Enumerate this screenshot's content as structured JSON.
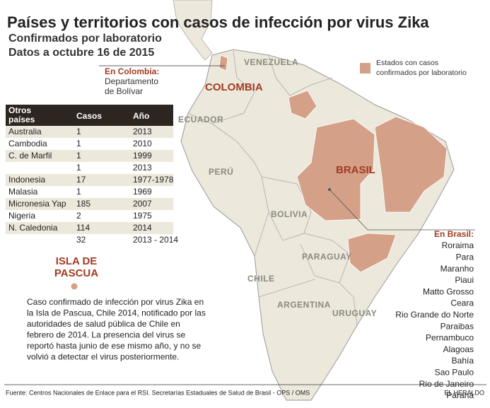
{
  "header": {
    "title": "Países y territorios con casos de infección por virus Zika",
    "subtitle": "Confirmados por laboratorio",
    "date": "Datos a octubre 16 de 2015"
  },
  "legend": {
    "lines": [
      "Estados con casos",
      "confirmados por laboratorio"
    ]
  },
  "colombia_note": {
    "label": "En Colombia:",
    "lines": [
      "Departamento",
      "de Bolívar"
    ]
  },
  "map_labels": {
    "venezuela": "VENEZUELA",
    "colombia": "COLOMBIA",
    "ecuador": "ECUADOR",
    "peru": "PERÚ",
    "bolivia": "BOLIVIA",
    "brasil": "BRASIL",
    "paraguay": "PARAGUAY",
    "chile": "CHILE",
    "argentina": "ARGENTINA",
    "uruguay": "URUGUAY"
  },
  "table": {
    "header": [
      "Otros\npaíses",
      "Casos",
      "Año"
    ],
    "rows": [
      [
        "Australia",
        "1",
        "2013"
      ],
      [
        "Cambodia",
        "1",
        "2010"
      ],
      [
        "C. de Marfil",
        "1",
        "1999"
      ],
      [
        null,
        "1",
        "2013"
      ],
      [
        "Indonesia",
        "17",
        "1977-1978"
      ],
      [
        "Malasia",
        "1",
        "1969"
      ],
      [
        "Micronesia Yap",
        "185",
        "2007"
      ],
      [
        "Nigeria",
        "2",
        "1975"
      ],
      [
        "N. Caledonia",
        "114",
        "2014"
      ],
      [
        null,
        "32",
        "2013 - 2014"
      ]
    ]
  },
  "easter_island": {
    "title": [
      "ISLA DE",
      "PASCUA"
    ],
    "text": [
      "Caso confirmado de infección por virus Zika en",
      "la Isla de Pascua, Chile 2014, notificado por las",
      "autoridades de salud pública de Chile en",
      "febrero de 2014. La presencia del virus se",
      "reportó hasta junio de ese mismo año, y no se",
      "volvió a detectar el virus posteriormente."
    ]
  },
  "brazil_states": {
    "label": "En Brasil:",
    "states": [
      "Roraima",
      "Para",
      "Maranho",
      "Piaui",
      "Matto Grosso",
      "Ceara",
      "Rio Grande do Norte",
      "Paraibas",
      "Pernambuco",
      "Alagoas",
      "Bahía",
      "Sao Paulo",
      "Rio de Janeiro",
      "Paraná"
    ]
  },
  "footer": {
    "source": "Fuente: Centros Nacionales de Enlace para el RSI. Secretarías Estaduales de Salud de Brasil - OPS / OMS",
    "brand": "EL HERALDO"
  }
}
